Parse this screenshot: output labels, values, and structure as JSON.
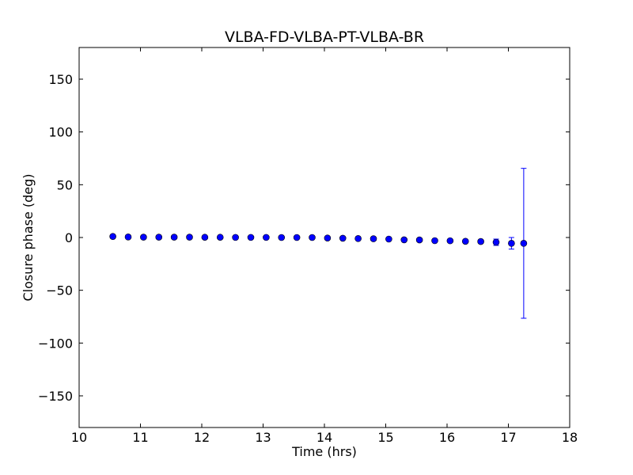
{
  "chart_data": {
    "type": "scatter",
    "title": "VLBA-FD-VLBA-PT-VLBA-BR",
    "xlabel": "Time (hrs)",
    "ylabel": "Closure phase (deg)",
    "xlim": [
      10,
      18
    ],
    "ylim": [
      -180,
      180
    ],
    "xticks": [
      10,
      11,
      12,
      13,
      14,
      15,
      16,
      17,
      18
    ],
    "xtick_labels": [
      "10",
      "11",
      "12",
      "13",
      "14",
      "15",
      "16",
      "17",
      "18"
    ],
    "yticks": [
      -150,
      -100,
      -50,
      0,
      50,
      100,
      150
    ],
    "ytick_labels": [
      "−150",
      "−100",
      "−50",
      "0",
      "50",
      "100",
      "150"
    ],
    "grid": false,
    "marker_color": "#0000ff",
    "errorbar_color": "#0000ff",
    "points": [
      {
        "x": 10.55,
        "y": 1.0,
        "err": 0.8
      },
      {
        "x": 10.8,
        "y": 0.5,
        "err": 0.8
      },
      {
        "x": 11.05,
        "y": 0.3,
        "err": 0.8
      },
      {
        "x": 11.3,
        "y": 0.3,
        "err": 0.8
      },
      {
        "x": 11.55,
        "y": 0.3,
        "err": 0.8
      },
      {
        "x": 11.8,
        "y": 0.3,
        "err": 0.8
      },
      {
        "x": 12.05,
        "y": 0.2,
        "err": 0.8
      },
      {
        "x": 12.3,
        "y": 0.2,
        "err": 0.8
      },
      {
        "x": 12.55,
        "y": 0.1,
        "err": 0.8
      },
      {
        "x": 12.8,
        "y": 0.1,
        "err": 0.8
      },
      {
        "x": 13.05,
        "y": 0.1,
        "err": 0.8
      },
      {
        "x": 13.3,
        "y": 0.0,
        "err": 0.8
      },
      {
        "x": 13.55,
        "y": 0.0,
        "err": 0.8
      },
      {
        "x": 13.8,
        "y": 0.0,
        "err": 0.8
      },
      {
        "x": 14.05,
        "y": -0.5,
        "err": 0.8
      },
      {
        "x": 14.3,
        "y": -0.7,
        "err": 0.8
      },
      {
        "x": 14.55,
        "y": -1.0,
        "err": 0.8
      },
      {
        "x": 14.8,
        "y": -1.2,
        "err": 0.8
      },
      {
        "x": 15.05,
        "y": -1.5,
        "err": 0.8
      },
      {
        "x": 15.3,
        "y": -2.2,
        "err": 0.8
      },
      {
        "x": 15.55,
        "y": -2.3,
        "err": 0.8
      },
      {
        "x": 15.8,
        "y": -3.0,
        "err": 1.0
      },
      {
        "x": 16.05,
        "y": -3.1,
        "err": 1.0
      },
      {
        "x": 16.3,
        "y": -3.6,
        "err": 1.2
      },
      {
        "x": 16.55,
        "y": -3.8,
        "err": 1.5
      },
      {
        "x": 16.8,
        "y": -4.5,
        "err": 3.0
      },
      {
        "x": 17.05,
        "y": -5.5,
        "err": 5.5
      },
      {
        "x": 17.25,
        "y": -5.5,
        "err": 71.0
      }
    ]
  }
}
